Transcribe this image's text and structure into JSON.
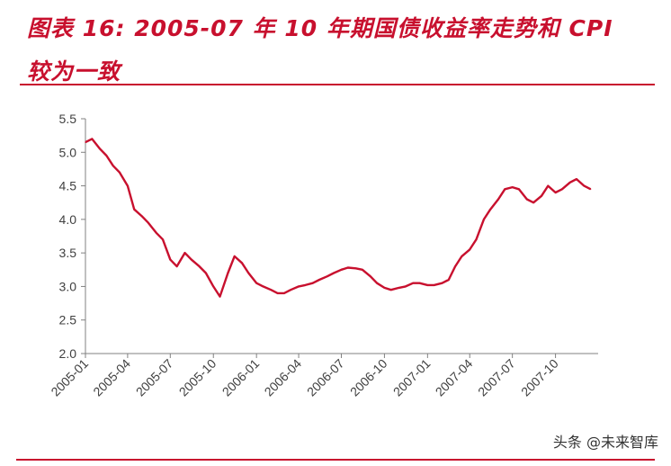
{
  "title_line1": "图表 16: 2005-07 年 10 年期国债收益率走势和  CPI",
  "title_line2": "较为一致",
  "watermark": "头条 @未来智库",
  "colors": {
    "accent": "#c8102e",
    "axis": "#808080",
    "text": "#404040"
  },
  "chart_data": {
    "type": "line",
    "title": "",
    "xlabel": "",
    "ylabel": "",
    "ylim": [
      2.0,
      5.5
    ],
    "yticks": [
      "2.0",
      "2.5",
      "3.0",
      "3.5",
      "4.0",
      "4.5",
      "5.0",
      "5.5"
    ],
    "xticks": [
      "2005-01",
      "2005-04",
      "2005-07",
      "2005-10",
      "2006-01",
      "2006-04",
      "2006-07",
      "2006-10",
      "2007-01",
      "2007-04",
      "2007-07",
      "2007-10"
    ],
    "grid": false,
    "series": [
      {
        "color": "#c8102e",
        "x": [
          "2005-01",
          "2005-01-15",
          "2005-02",
          "2005-02-15",
          "2005-03",
          "2005-03-15",
          "2005-04",
          "2005-04-15",
          "2005-05",
          "2005-05-15",
          "2005-06",
          "2005-06-15",
          "2005-07",
          "2005-07-15",
          "2005-08",
          "2005-08-15",
          "2005-09",
          "2005-09-15",
          "2005-10",
          "2005-10-15",
          "2005-11",
          "2005-11-15",
          "2005-12",
          "2005-12-15",
          "2006-01",
          "2006-01-15",
          "2006-02",
          "2006-02-15",
          "2006-03",
          "2006-03-15",
          "2006-04",
          "2006-04-15",
          "2006-05",
          "2006-05-15",
          "2006-06",
          "2006-06-15",
          "2006-07",
          "2006-07-15",
          "2006-08",
          "2006-08-15",
          "2006-09",
          "2006-09-15",
          "2006-10",
          "2006-10-15",
          "2006-11",
          "2006-11-15",
          "2006-12",
          "2006-12-15",
          "2007-01",
          "2007-01-15",
          "2007-02",
          "2007-02-15",
          "2007-03",
          "2007-03-15",
          "2007-04",
          "2007-04-15",
          "2007-05",
          "2007-05-15",
          "2007-06",
          "2007-06-15",
          "2007-07",
          "2007-07-15",
          "2007-08",
          "2007-08-15",
          "2007-09",
          "2007-09-15",
          "2007-10",
          "2007-10-15",
          "2007-11",
          "2007-11-15",
          "2007-12",
          "2007-12-15"
        ],
        "values": [
          5.15,
          5.2,
          5.05,
          4.95,
          4.8,
          4.7,
          4.5,
          4.15,
          4.05,
          3.95,
          3.8,
          3.7,
          3.4,
          3.3,
          3.5,
          3.4,
          3.3,
          3.2,
          3.0,
          2.85,
          3.2,
          3.45,
          3.35,
          3.2,
          3.05,
          3.0,
          2.95,
          2.9,
          2.9,
          2.95,
          3.0,
          3.02,
          3.05,
          3.1,
          3.15,
          3.2,
          3.25,
          3.28,
          3.27,
          3.25,
          3.15,
          3.05,
          2.98,
          2.95,
          2.98,
          3.0,
          3.05,
          3.05,
          3.02,
          3.02,
          3.05,
          3.1,
          3.3,
          3.45,
          3.55,
          3.7,
          4.0,
          4.15,
          4.3,
          4.45,
          4.48,
          4.45,
          4.3,
          4.25,
          4.35,
          4.5,
          4.4,
          4.45,
          4.55,
          4.6,
          4.5,
          4.45
        ]
      }
    ]
  }
}
